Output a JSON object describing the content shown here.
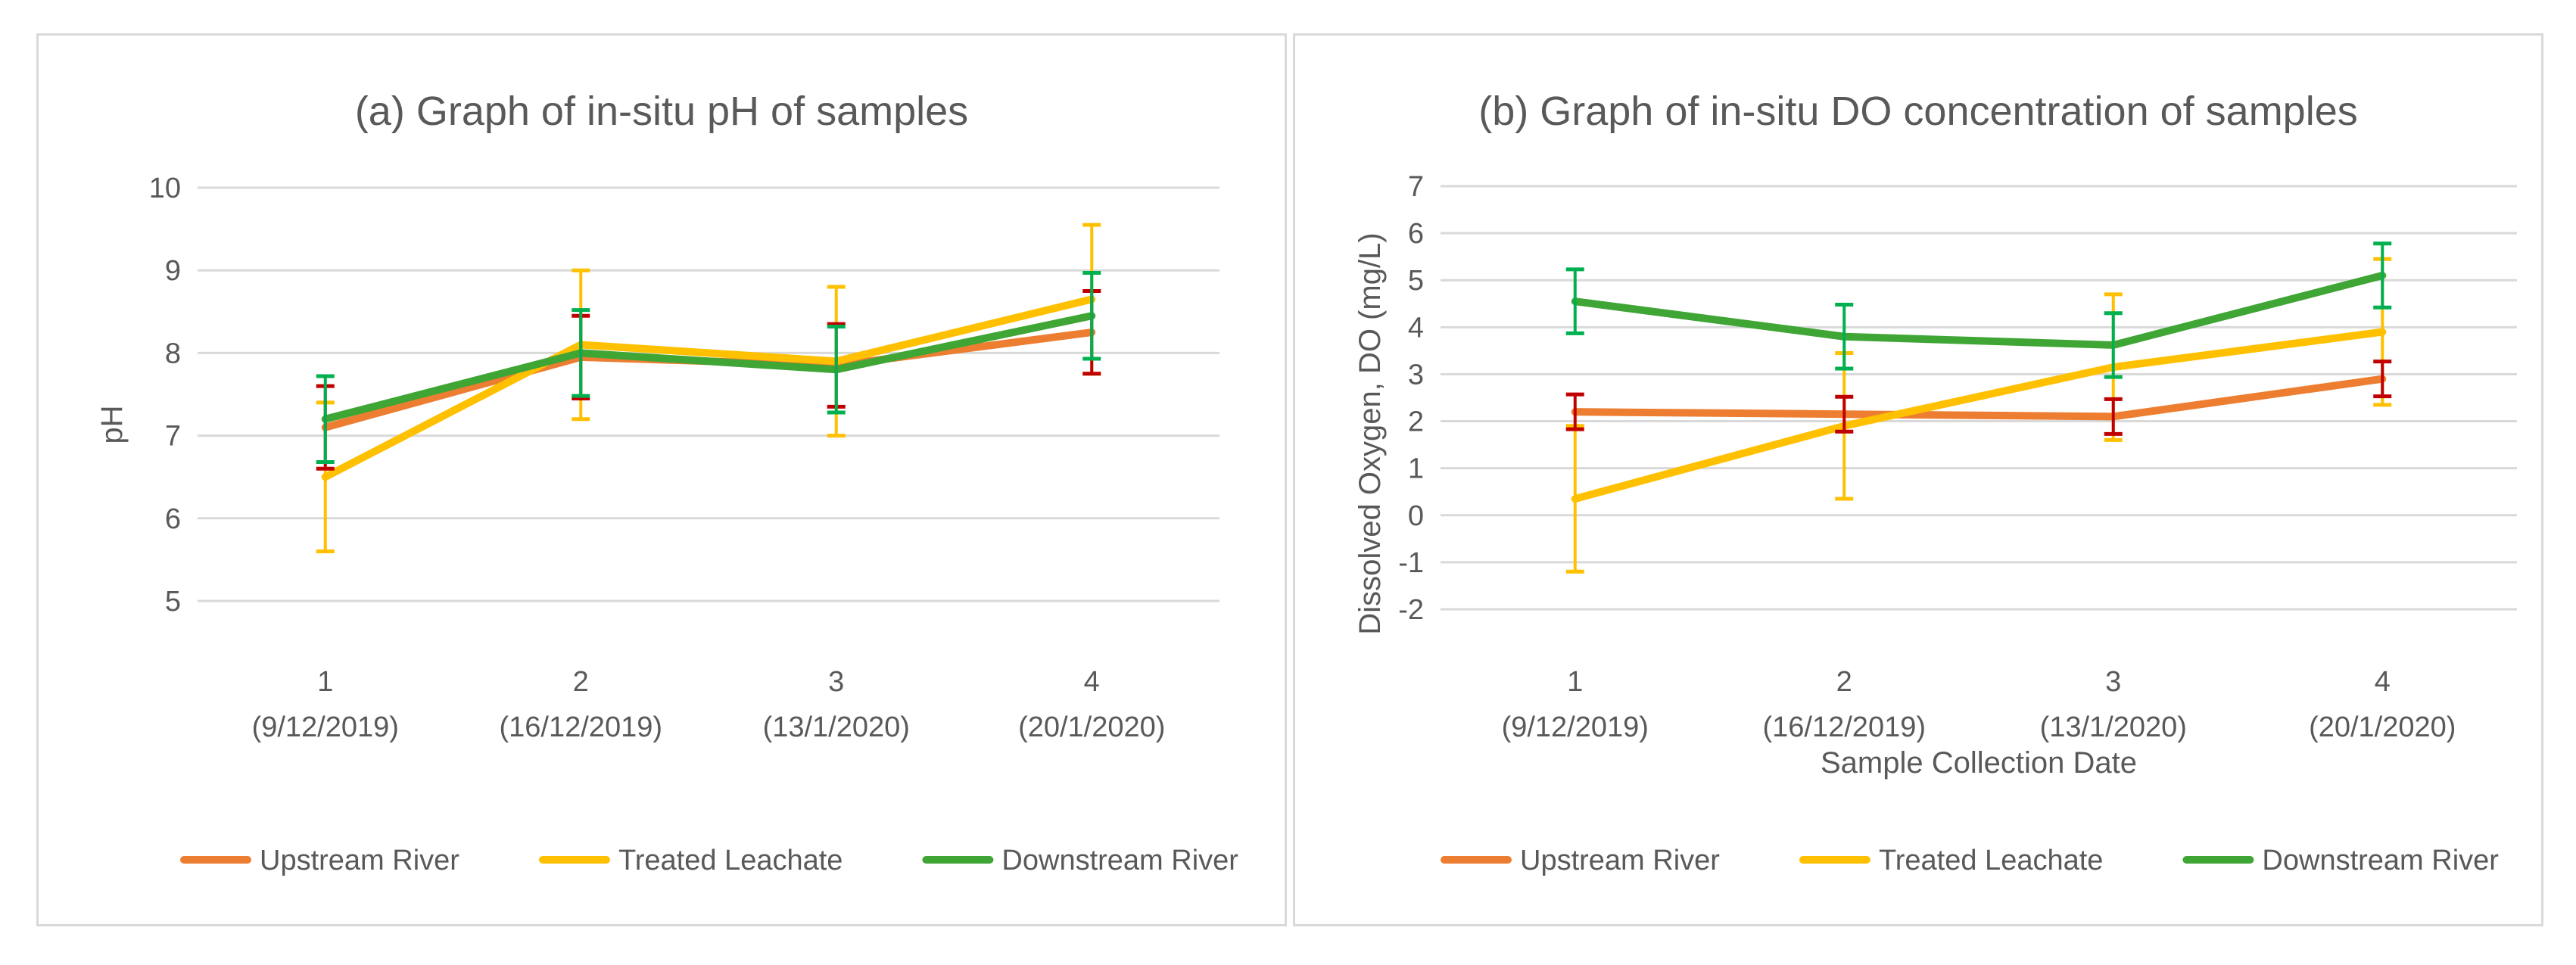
{
  "colors": {
    "upstream": "#ED7D31",
    "treated": "#FFC000",
    "downstream": "#3FA535",
    "grid": "#D9D9D9",
    "text": "#595959",
    "err_upstream": "#C00000",
    "err_treated": "#FFC000",
    "err_downstream": "#00B050"
  },
  "chart_data": [
    {
      "type": "line",
      "title": "(a) Graph of in-situ pH of samples",
      "xlabel": "",
      "ylabel": "pH",
      "ylim": [
        5,
        10
      ],
      "yticks": [
        5,
        6,
        7,
        8,
        9,
        10
      ],
      "grid": true,
      "legend": "bottom",
      "categories": [
        "1",
        "2",
        "3",
        "4"
      ],
      "category_dates": [
        "(9/12/2019)",
        "(16/12/2019)",
        "(13/1/2020)",
        "(20/1/2020)"
      ],
      "series": [
        {
          "name": "Upstream River",
          "key": "upstream",
          "values": [
            7.1,
            7.95,
            7.85,
            8.25
          ],
          "errors": [
            0.5,
            0.5,
            0.5,
            0.5
          ]
        },
        {
          "name": "Treated Leachate",
          "key": "treated",
          "values": [
            6.5,
            8.1,
            7.9,
            8.65
          ],
          "errors": [
            0.9,
            0.9,
            0.9,
            0.9
          ]
        },
        {
          "name": "Downstream River",
          "key": "downstream",
          "values": [
            7.2,
            8.0,
            7.8,
            8.45
          ],
          "errors": [
            0.52,
            0.52,
            0.52,
            0.52
          ]
        }
      ]
    },
    {
      "type": "line",
      "title": "(b) Graph of in-situ DO concentration of samples",
      "xlabel": "Sample Collection Date",
      "ylabel": "Dissolved Oxygen, DO (mg/L)",
      "ylim": [
        -2,
        7
      ],
      "yticks": [
        -2,
        -1,
        0,
        1,
        2,
        3,
        4,
        5,
        6,
        7
      ],
      "grid": true,
      "legend": "bottom",
      "categories": [
        "1",
        "2",
        "3",
        "4"
      ],
      "category_dates": [
        "(9/12/2019)",
        "(16/12/2019)",
        "(13/1/2020)",
        "(20/1/2020)"
      ],
      "series": [
        {
          "name": "Upstream River",
          "key": "upstream",
          "values": [
            2.2,
            2.15,
            2.1,
            2.9
          ],
          "errors": [
            0.37,
            0.37,
            0.37,
            0.37
          ]
        },
        {
          "name": "Treated Leachate",
          "key": "treated",
          "values": [
            0.35,
            1.9,
            3.15,
            3.9
          ],
          "errors": [
            1.55,
            1.55,
            1.55,
            1.55
          ]
        },
        {
          "name": "Downstream River",
          "key": "downstream",
          "values": [
            4.55,
            3.8,
            3.62,
            5.1
          ],
          "errors": [
            0.68,
            0.68,
            0.68,
            0.68
          ]
        }
      ]
    }
  ]
}
